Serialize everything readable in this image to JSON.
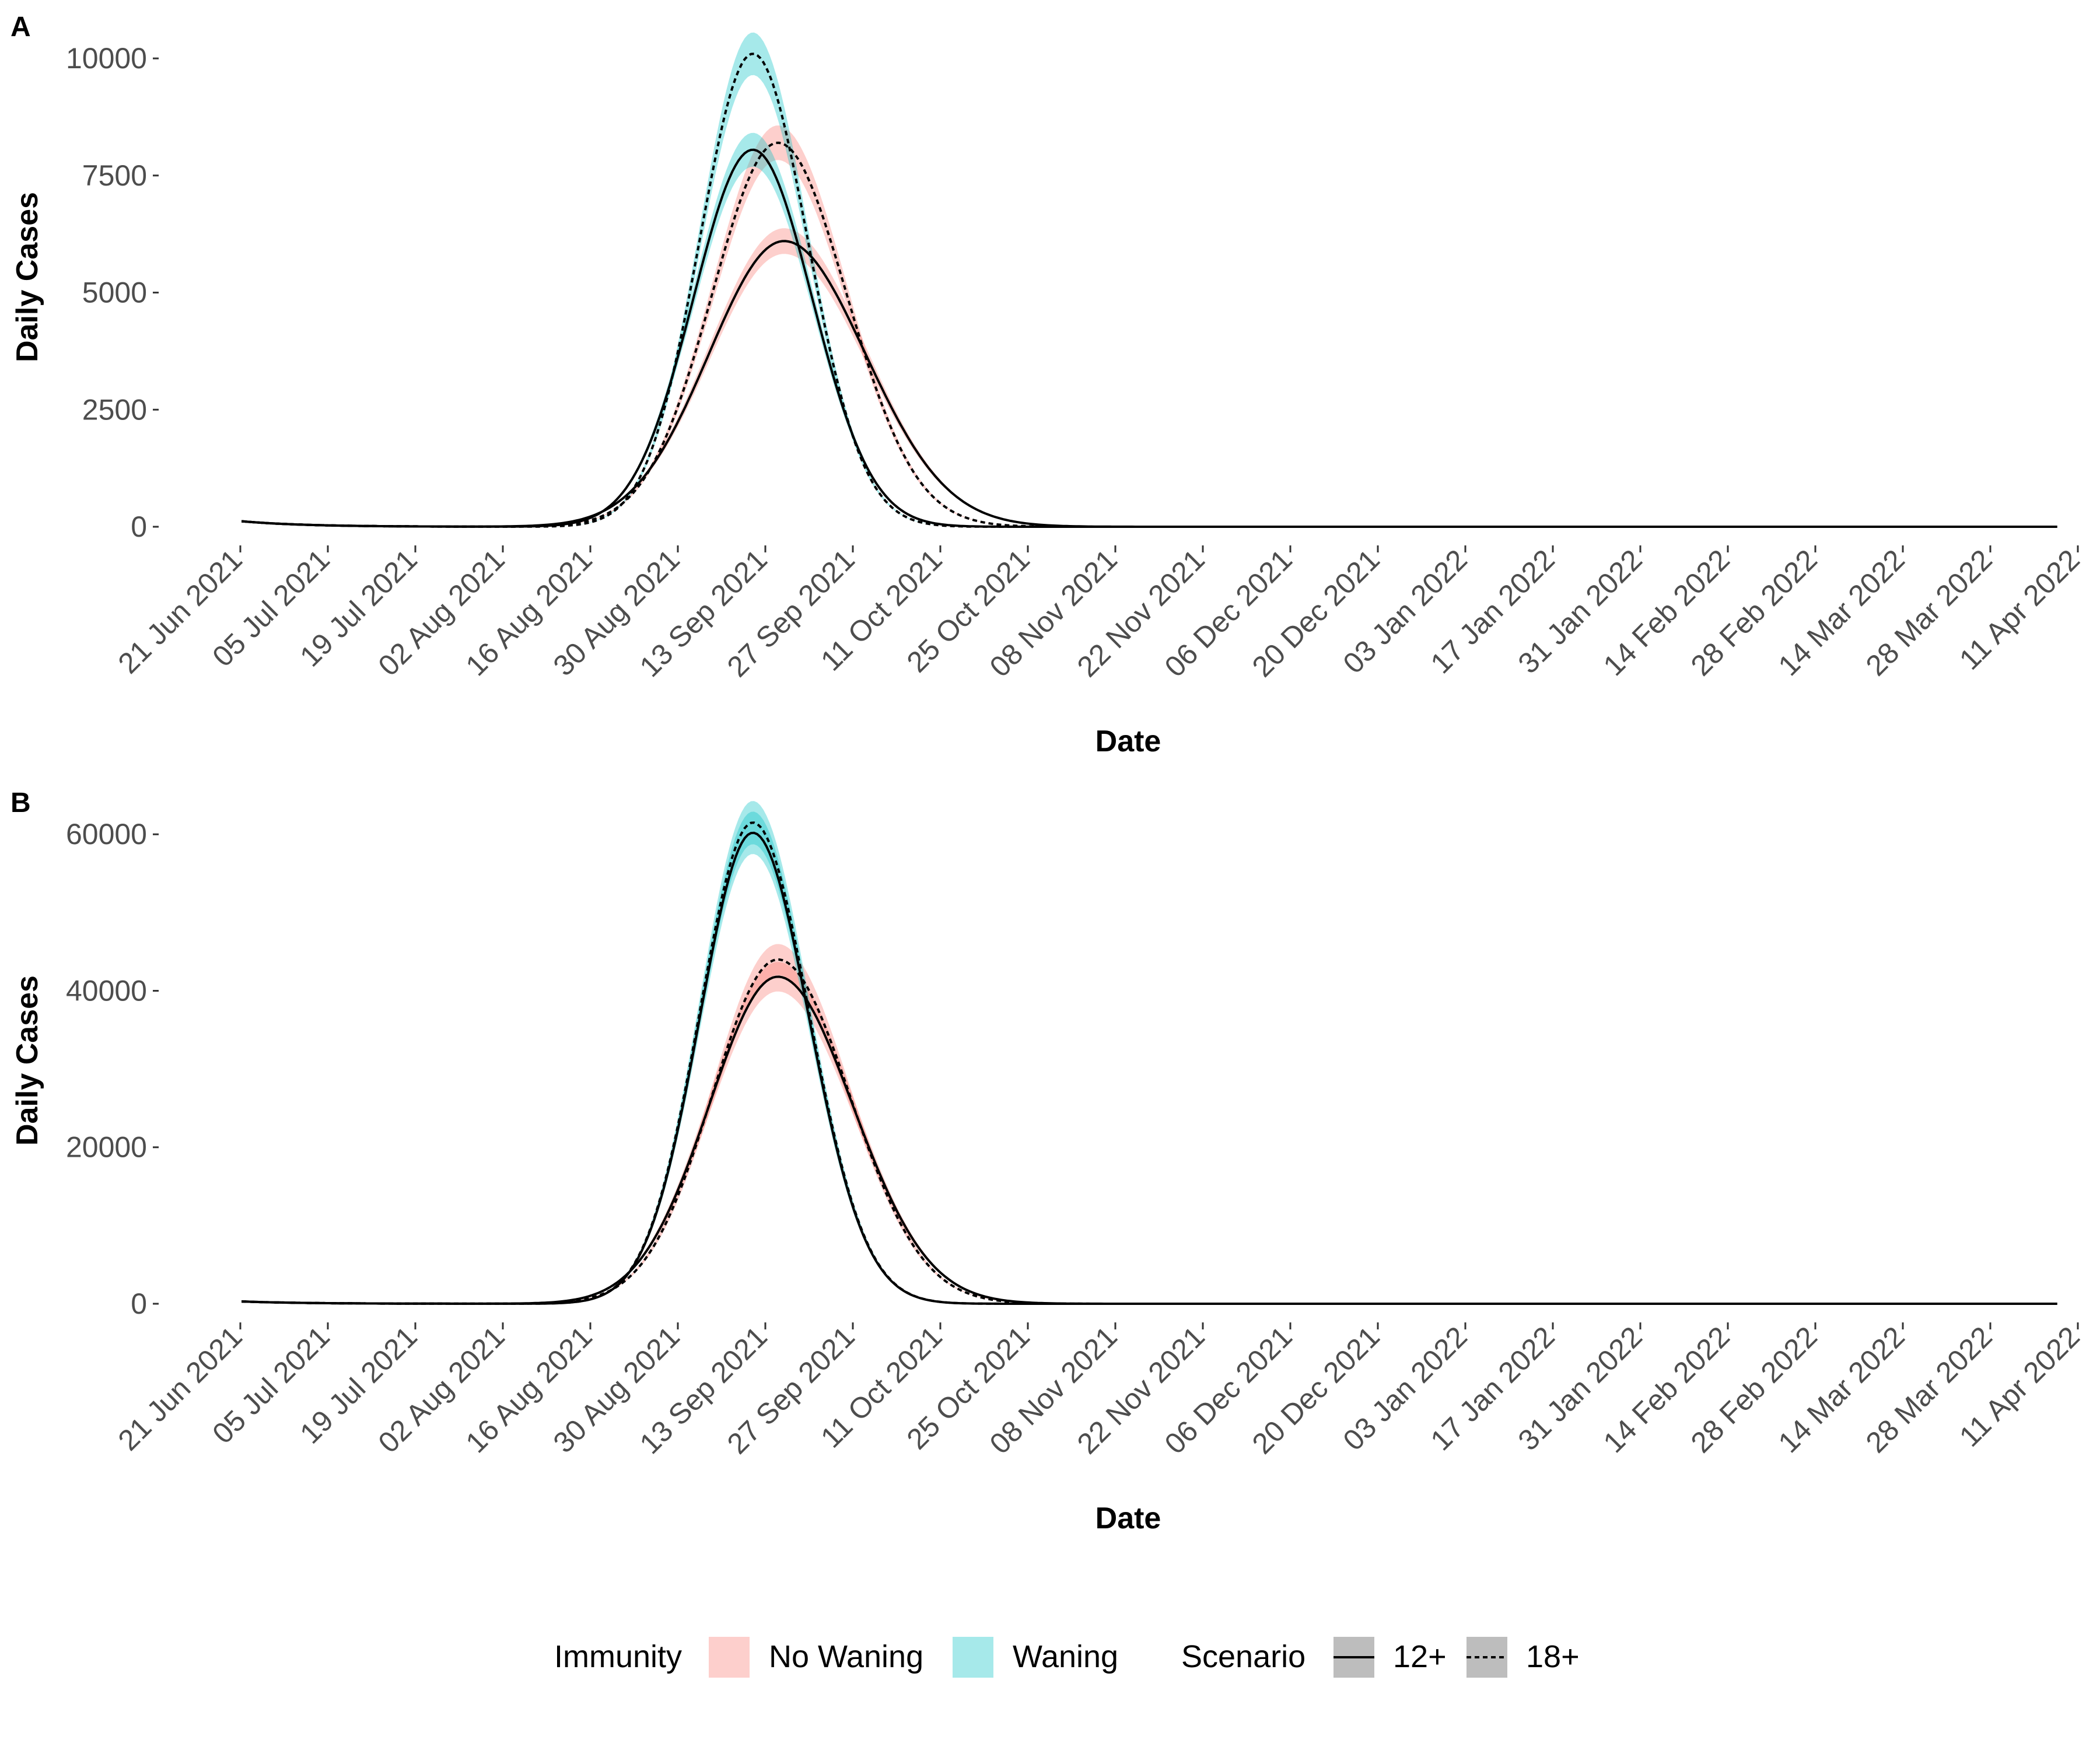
{
  "chart_data": [
    {
      "panel": "A",
      "type": "line",
      "xlabel": "Date",
      "ylabel": "Daily Cases",
      "ylim": [
        0,
        10500
      ],
      "yticks": [
        0,
        2500,
        5000,
        7500,
        10000
      ],
      "x_range": [
        "2021-06-21",
        "2022-04-11"
      ],
      "xtick_labels": [
        "21 Jun 2021",
        "05 Jul 2021",
        "19 Jul 2021",
        "02 Aug 2021",
        "16 Aug 2021",
        "30 Aug 2021",
        "13 Sep 2021",
        "27 Sep 2021",
        "11 Oct 2021",
        "25 Oct 2021",
        "08 Nov 2021",
        "22 Nov 2021",
        "06 Dec 2021",
        "20 Dec 2021",
        "03 Jan 2022",
        "17 Jan 2022",
        "31 Jan 2022",
        "14 Feb 2022",
        "28 Feb 2022",
        "14 Mar 2022",
        "28 Mar 2022",
        "11 Apr 2022"
      ],
      "grid": false,
      "series": [
        {
          "immunity": "No Waning",
          "scenario": "12+",
          "start_value": 120,
          "peak_date": "2021-09-16",
          "peak_value": 6100,
          "sigma_rise_days": 12.0,
          "sigma_fall_days": 13.0
        },
        {
          "immunity": "No Waning",
          "scenario": "18+",
          "start_value": 120,
          "peak_date": "2021-09-15",
          "peak_value": 8200,
          "sigma_rise_days": 10.5,
          "sigma_fall_days": 11.0
        },
        {
          "immunity": "Waning",
          "scenario": "12+",
          "start_value": 120,
          "peak_date": "2021-09-11",
          "peak_value": 8050,
          "sigma_rise_days": 9.5,
          "sigma_fall_days": 9.5
        },
        {
          "immunity": "Waning",
          "scenario": "18+",
          "start_value": 120,
          "peak_date": "2021-09-11",
          "peak_value": 10100,
          "sigma_rise_days": 8.5,
          "sigma_fall_days": 8.8
        }
      ]
    },
    {
      "panel": "B",
      "type": "line",
      "xlabel": "Date",
      "ylabel": "Daily Cases",
      "ylim": [
        0,
        63000
      ],
      "yticks": [
        0,
        20000,
        40000,
        60000
      ],
      "x_range": [
        "2021-06-21",
        "2022-04-11"
      ],
      "xtick_labels": [
        "21 Jun 2021",
        "05 Jul 2021",
        "19 Jul 2021",
        "02 Aug 2021",
        "16 Aug 2021",
        "30 Aug 2021",
        "13 Sep 2021",
        "27 Sep 2021",
        "11 Oct 2021",
        "25 Oct 2021",
        "08 Nov 2021",
        "22 Nov 2021",
        "06 Dec 2021",
        "20 Dec 2021",
        "03 Jan 2022",
        "17 Jan 2022",
        "31 Jan 2022",
        "14 Feb 2022",
        "28 Feb 2022",
        "14 Mar 2022",
        "28 Mar 2022",
        "11 Apr 2022"
      ],
      "grid": false,
      "series": [
        {
          "immunity": "No Waning",
          "scenario": "12+",
          "start_value": 300,
          "peak_date": "2021-09-15",
          "peak_value": 41800,
          "sigma_rise_days": 11.0,
          "sigma_fall_days": 12.0
        },
        {
          "immunity": "No Waning",
          "scenario": "18+",
          "start_value": 300,
          "peak_date": "2021-09-15",
          "peak_value": 44000,
          "sigma_rise_days": 10.5,
          "sigma_fall_days": 11.5
        },
        {
          "immunity": "Waning",
          "scenario": "12+",
          "start_value": 300,
          "peak_date": "2021-09-11",
          "peak_value": 60200,
          "sigma_rise_days": 8.5,
          "sigma_fall_days": 9.0
        },
        {
          "immunity": "Waning",
          "scenario": "18+",
          "start_value": 300,
          "peak_date": "2021-09-11",
          "peak_value": 61500,
          "sigma_rise_days": 8.5,
          "sigma_fall_days": 9.0
        }
      ]
    }
  ],
  "legend": {
    "placement": "bottom",
    "immunity_title": "Immunity",
    "immunity_items": [
      {
        "label": "No Waning",
        "color": "#F8766D"
      },
      {
        "label": "Waning",
        "color": "#00BFC4"
      }
    ],
    "scenario_title": "Scenario",
    "scenario_items": [
      {
        "label": "12+",
        "linetype": "solid"
      },
      {
        "label": "18+",
        "linetype": "dotted"
      }
    ]
  },
  "colors": {
    "no_waning": "#F8766D",
    "waning": "#00BFC4",
    "line": "#000000"
  }
}
